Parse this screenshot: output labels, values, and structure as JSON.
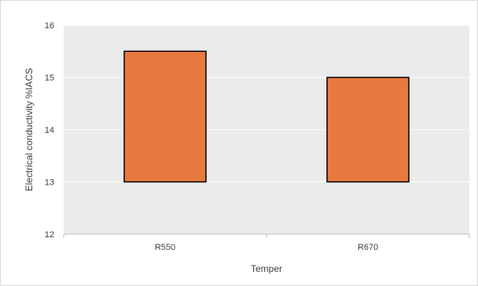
{
  "chart_data": {
    "type": "bar",
    "subtype": "floating",
    "categories": [
      "R550",
      "R670"
    ],
    "series": [
      {
        "bars": [
          {
            "category": "R550",
            "low": 13,
            "high": 15.5
          },
          {
            "category": "R670",
            "low": 13,
            "high": 15
          }
        ]
      }
    ],
    "title": "",
    "xlabel": "Temper",
    "ylabel": "Electrical conductivity  %IACS",
    "ylim": [
      12,
      16
    ],
    "yticks": [
      "12",
      "13",
      "14",
      "15",
      "16"
    ],
    "grid": true,
    "legend": "none",
    "colors": {
      "bar_fill": "#E8793F",
      "bar_stroke": "#000000",
      "plot_background": "#EBEBEB",
      "gridline": "#FFFFFF",
      "axis": "#BFBFBF",
      "text": "#404040"
    }
  }
}
